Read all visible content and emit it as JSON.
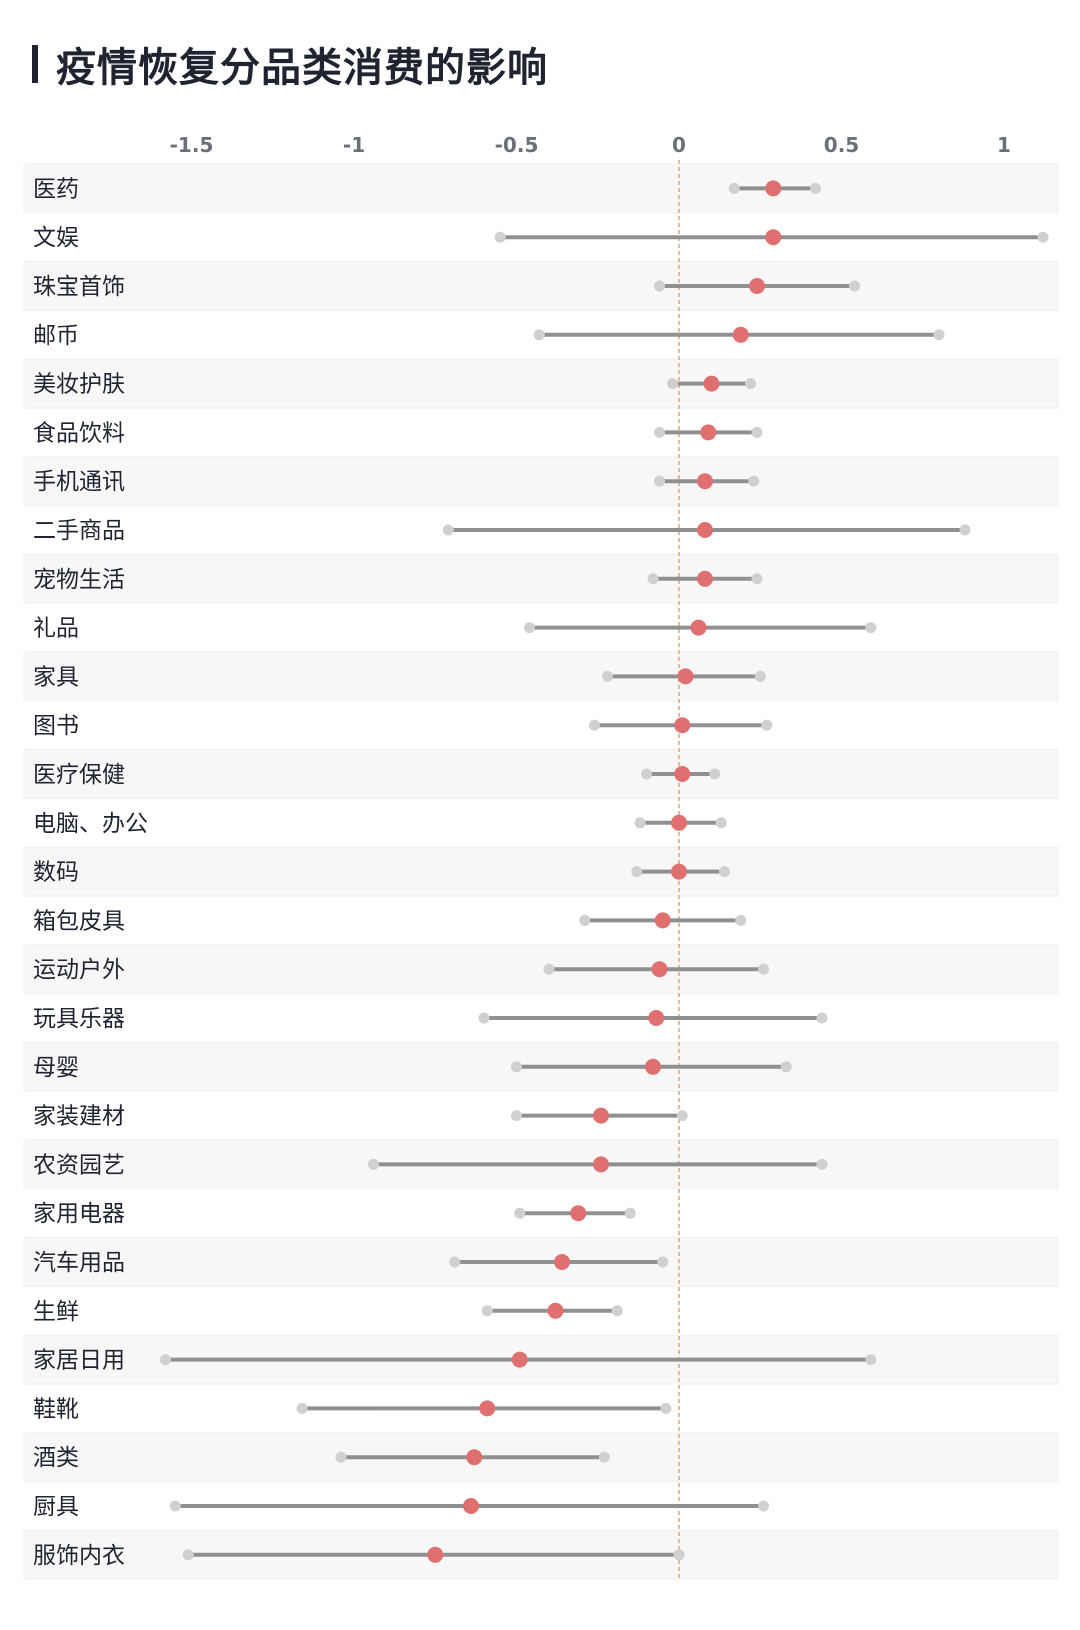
{
  "title": "疫情恢复分品类消费的影响",
  "chart_data": {
    "type": "dumbbell",
    "xlim": [
      -1.6,
      1.15
    ],
    "xticks": [
      -1.5,
      -1,
      -0.5,
      0,
      0.5,
      1
    ],
    "xtick_labels": [
      "-1.5",
      "-1",
      "-0.5",
      "0",
      "0.5",
      "1"
    ],
    "reference_line": 0,
    "colors": {
      "point": "#e07070",
      "range": "#909090",
      "end": "#d0d0d0",
      "ref": "#e8a070",
      "band": "#f7f7f7"
    },
    "categories": [
      "医药",
      "文娱",
      "珠宝首饰",
      "邮币",
      "美妆护肤",
      "食品饮料",
      "手机通讯",
      "二手商品",
      "宠物生活",
      "礼品",
      "家具",
      "图书",
      "医疗保健",
      "电脑、办公",
      "数码",
      "箱包皮具",
      "运动户外",
      "玩具乐器",
      "母婴",
      "家装建材",
      "农资园艺",
      "家用电器",
      "汽车用品",
      "生鲜",
      "家居日用",
      "鞋靴",
      "酒类",
      "厨具",
      "服饰内衣"
    ],
    "low": [
      0.17,
      -0.55,
      -0.06,
      -0.43,
      -0.02,
      -0.06,
      -0.06,
      -0.71,
      -0.08,
      -0.46,
      -0.22,
      -0.26,
      -0.1,
      -0.12,
      -0.13,
      -0.29,
      -0.4,
      -0.6,
      -0.5,
      -0.5,
      -0.94,
      -0.49,
      -0.69,
      -0.59,
      -1.58,
      -1.16,
      -1.04,
      -1.55,
      -1.51
    ],
    "values": [
      0.29,
      0.29,
      0.24,
      0.19,
      0.1,
      0.09,
      0.08,
      0.08,
      0.08,
      0.06,
      0.02,
      0.01,
      0.01,
      0.0,
      0.0,
      -0.05,
      -0.06,
      -0.07,
      -0.08,
      -0.24,
      -0.24,
      -0.31,
      -0.36,
      -0.38,
      -0.49,
      -0.59,
      -0.63,
      -0.64,
      -0.75
    ],
    "high": [
      0.42,
      1.12,
      0.54,
      0.8,
      0.22,
      0.24,
      0.23,
      0.88,
      0.24,
      0.59,
      0.25,
      0.27,
      0.11,
      0.13,
      0.14,
      0.19,
      0.26,
      0.44,
      0.33,
      0.01,
      0.44,
      -0.15,
      -0.05,
      -0.19,
      0.59,
      -0.04,
      -0.23,
      0.26,
      0.0
    ]
  }
}
